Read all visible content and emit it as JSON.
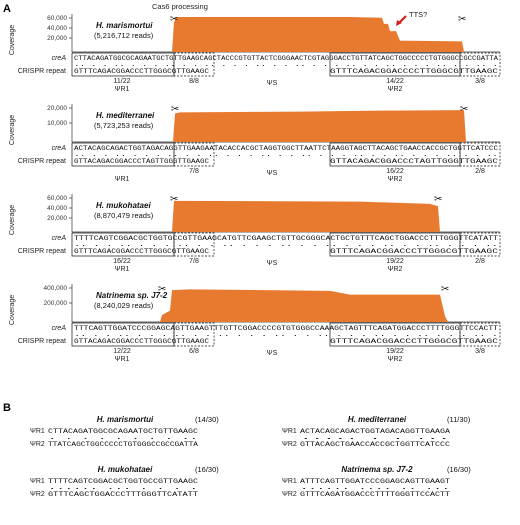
{
  "panel_a_label": "A",
  "panel_b_label": "B",
  "cas6_label": "Cas6 processing",
  "tts_label": "TTS?",
  "ylabel": "Coverage",
  "row_labels": {
    "crea": "creA",
    "crispr": "CRISPR repeat"
  },
  "colors": {
    "coverage": "#E77A2E",
    "tts_mark": "#E0231F",
    "arrow": "#D4201C"
  },
  "tracks": [
    {
      "organism": "H. marismortui",
      "reads": "(5,216,712 reads)",
      "yticks": [
        "60,000",
        "40,000",
        "20,000"
      ],
      "crea_seq": "CTTACAGATGGCGCAGAATGCTGTTGAAGCAGCTACCCGTGTTACTCGGGAACTCGTAGGGACCTGTTATCAGCTGGCCCCCTGTGGGCCGCCGATTA",
      "crea_highlight": "TGTTAT",
      "repeat_left": "GTTTCAGACGGACCCTTGGGCGTTGAAGC",
      "repeat_right": "GTTTCAGACGGACCCCTTGGGCGTTGAAGC",
      "left_score": "11/22",
      "left_end": "8/8",
      "right_score": "14/22",
      "right_end": "3/8",
      "psi_r1": "ΨR1",
      "psi_s": "ΨS",
      "psi_r2": "ΨR2"
    },
    {
      "organism": "H. mediterranei",
      "reads": "(5,723,253 reads)",
      "yticks": [
        "20,000",
        "10,000"
      ],
      "crea_seq": "ACTACAGCAGACTGGTAGACAGGTTGAAGAATACACCACGCTAGGTGGCTTAATTCTAAGGTAGCTTACAGCTGAACCACCGCTGGTTCATCCC",
      "crea_highlight": "",
      "repeat_left": "GTTACAGACGGACCCTAGTTGGGTTGAAGC",
      "repeat_right": "GTTACAGACGGACCCTAGTTGGGTTGAAGC",
      "left_score": "",
      "left_end": "7/8",
      "right_score": "16/22",
      "right_end": "2/8",
      "psi_r1": "ΨR1",
      "psi_s": "ΨS",
      "psi_r2": "ΨR2"
    },
    {
      "organism": "H. mukohataei",
      "reads": "(8,870,479 reads)",
      "yticks": [
        "60,000",
        "40,000",
        "20,000"
      ],
      "crea_seq": "TTTTCAGTCGGACGCTGGTGCCGTTGAAGCATGTTCGAAGCTGTTGCGGGCACTGCTGTTTCAGCTGGACCCTTTGGGTTCATATT",
      "crea_highlight": "",
      "repeat_left": "GTTTCAGACGGACCCTTGGGCGTTGAAGC",
      "repeat_right": "GTTTCAGACGGACCCTTGGGCGTTGAAGC",
      "left_score": "16/22",
      "left_end": "7/8",
      "right_score": "19/22",
      "right_end": "2/8",
      "psi_r1": "ΨR1",
      "psi_s": "ΨS",
      "psi_r2": "ΨR2"
    },
    {
      "organism": "Natrinema sp. J7-2",
      "reads": "(8,240,029 reads)",
      "yticks": [
        "400,000",
        "200,000"
      ],
      "crea_seq": "TTTCAGTTGGATCCCGGAGCAGTTGAAGTTTGTTCGGACCCCGTGTGGGCCAAAGCTAGTTTCAGATGGACCCTTTTGGGTTCCACTT",
      "crea_highlight": "",
      "repeat_left": "GTTACAGACGGACCCTTGGGCGTTGAAGC",
      "repeat_right": "GTTTCAGACGGACCCTTGGGCGTTGAAGC",
      "left_score": "12/22",
      "left_end": "6/8",
      "right_score": "19/22",
      "right_end": "3/8",
      "psi_r1": "ΨR1",
      "psi_s": "ΨS",
      "psi_r2": "ΨR2"
    }
  ],
  "alignments": [
    {
      "title": "H. marismortui",
      "score": "(14/30)",
      "r1_label": "ΨR1",
      "r1": "CTTACAGATGGCGCAGAATGCTGTTGAAGC",
      "r2_label": "ΨR2",
      "r2": "TTATCAGCTGGCCCCCTGTGGGCCGCCGATTA",
      "dots": ". .  .  .    .  . .    . ..    "
    },
    {
      "title": "H. mediterranei",
      "score": "(11/30)",
      "r1_label": "ΨR1",
      "r1": "ACTACAGCAGACTGGTAGACAGGTTGAAGA",
      "r2_label": "ΨR2",
      "r2": "GTTACAGCTGAACCACCGCTGGTTCATCCC",
      "dots": "  .....  .    .      ...      "
    },
    {
      "title": "H. mukohataei",
      "score": "(16/30)",
      "r1_label": "ΨR1",
      "r1": "TTTTCAGTCGGACGCTGGTGCCGTTGAAGC",
      "r2_label": "ΨR2",
      "r2": "GTTTCAGCTGGACCCTTTGGGTTCATATT",
      "dots": " ......  ...  .  .  .  .      "
    },
    {
      "title": "Natrinema sp. J7-2",
      "score": "(16/30)",
      "r1_label": "ΨR1",
      "r1": "ATTTCAGTTGGATCCCGGAGCAGTTGAAGT",
      "r2_label": "ΨR2",
      "r2": "GTTTCAGATGGACCCTTTTGGGTTCCACTT",
      "dots": " ......  .... ..    ...       "
    }
  ]
}
